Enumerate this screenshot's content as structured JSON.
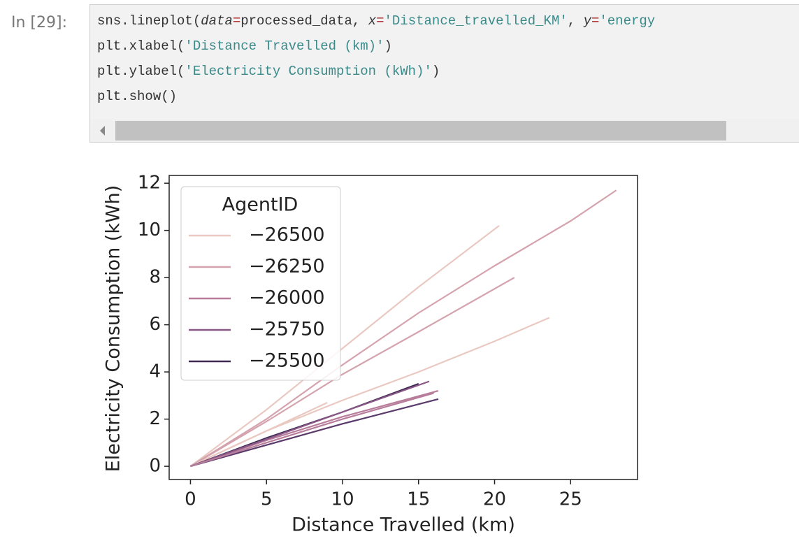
{
  "cell": {
    "prompt": "In [29]:",
    "code": [
      [
        "sns.lineplot(",
        "data",
        "=",
        "processed_data, ",
        "x",
        "=",
        "'Distance_travelled_KM'",
        ", ",
        "y",
        "=",
        "'energy"
      ],
      [
        "plt.xlabel(",
        "'Distance Travelled (km)'",
        ")"
      ],
      [
        "plt.ylabel(",
        "'Electricity Consumption (kWh)'",
        ")"
      ],
      [
        "plt.show()"
      ]
    ]
  },
  "chart_data": {
    "type": "line",
    "xlabel": "Distance Travelled (km)",
    "ylabel": "Electricity Consumption (kWh)",
    "xlim": [
      -1.4,
      29.4
    ],
    "ylim": [
      -0.56,
      12.33
    ],
    "xticks": [
      0,
      5,
      10,
      15,
      20,
      25
    ],
    "yticks": [
      0,
      2,
      4,
      6,
      8,
      10,
      12
    ],
    "legend": {
      "title": "AgentID",
      "position": "upper left",
      "entries": [
        {
          "label": "−26500",
          "color": "#e9c9c1"
        },
        {
          "label": "−26250",
          "color": "#d5a3ae"
        },
        {
          "label": "−26000",
          "color": "#b77d9b"
        },
        {
          "label": "−25750",
          "color": "#8a5886"
        },
        {
          "label": "−25500",
          "color": "#3d2951"
        }
      ]
    },
    "series": [
      {
        "color": "#e9c9c1",
        "x": [
          0,
          5,
          10,
          15,
          20.3
        ],
        "values": [
          0,
          2.4,
          5.0,
          7.6,
          10.2
        ]
      },
      {
        "color": "#d5a3ae",
        "x": [
          0,
          5,
          10,
          15,
          20,
          25,
          28
        ],
        "values": [
          0,
          2.0,
          4.3,
          6.5,
          8.5,
          10.4,
          11.7
        ]
      },
      {
        "color": "#d5a3ae",
        "x": [
          0,
          5,
          10,
          15,
          21.3
        ],
        "values": [
          0,
          1.9,
          3.9,
          5.7,
          8.0
        ]
      },
      {
        "color": "#e9c9c1",
        "x": [
          0,
          5,
          10,
          15,
          20,
          23.6
        ],
        "values": [
          0,
          1.5,
          2.8,
          4.0,
          5.3,
          6.3
        ]
      },
      {
        "color": "#e9c9c1",
        "x": [
          0,
          5,
          9
        ],
        "values": [
          0,
          1.5,
          2.7
        ]
      },
      {
        "color": "#b77d9b",
        "x": [
          0,
          5,
          10,
          16.3
        ],
        "values": [
          0,
          1.1,
          2.1,
          3.2
        ]
      },
      {
        "color": "#3d2951",
        "x": [
          0,
          5,
          10,
          15
        ],
        "values": [
          0,
          1.2,
          2.3,
          3.5
        ]
      },
      {
        "color": "#8a5886",
        "x": [
          0,
          5,
          10,
          15.7
        ],
        "values": [
          0,
          1.15,
          2.3,
          3.6
        ]
      },
      {
        "color": "#5a3a6a",
        "x": [
          0,
          5,
          10,
          16.3
        ],
        "values": [
          0,
          0.9,
          1.8,
          2.85
        ]
      },
      {
        "color": "#b77d9b",
        "x": [
          0,
          5,
          10,
          16
        ],
        "values": [
          0,
          1.0,
          2.0,
          3.1
        ]
      }
    ]
  }
}
